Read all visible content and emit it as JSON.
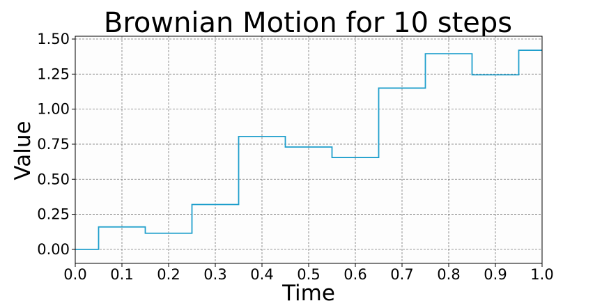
{
  "chart_data": {
    "type": "line",
    "title": "Brownian Motion for 10 steps",
    "xlabel": "Time",
    "ylabel": "Value",
    "xlim": [
      0.0,
      1.0
    ],
    "ylim": [
      -0.1,
      1.52
    ],
    "xticks": [
      "0.0",
      "0.1",
      "0.2",
      "0.3",
      "0.4",
      "0.5",
      "0.6",
      "0.7",
      "0.8",
      "0.9",
      "1.0"
    ],
    "yticks": [
      "0.00",
      "0.25",
      "0.50",
      "0.75",
      "1.00",
      "1.25",
      "1.50"
    ],
    "grid": true,
    "step_style": "mid",
    "series": [
      {
        "color": "#1f9fcc",
        "x": [
          0.0,
          0.1,
          0.2,
          0.3,
          0.4,
          0.5,
          0.6,
          0.7,
          0.8,
          0.9,
          1.0
        ],
        "y": [
          0.0,
          0.16,
          0.115,
          0.32,
          0.805,
          0.73,
          0.655,
          1.15,
          1.395,
          1.245,
          1.42
        ]
      }
    ]
  }
}
